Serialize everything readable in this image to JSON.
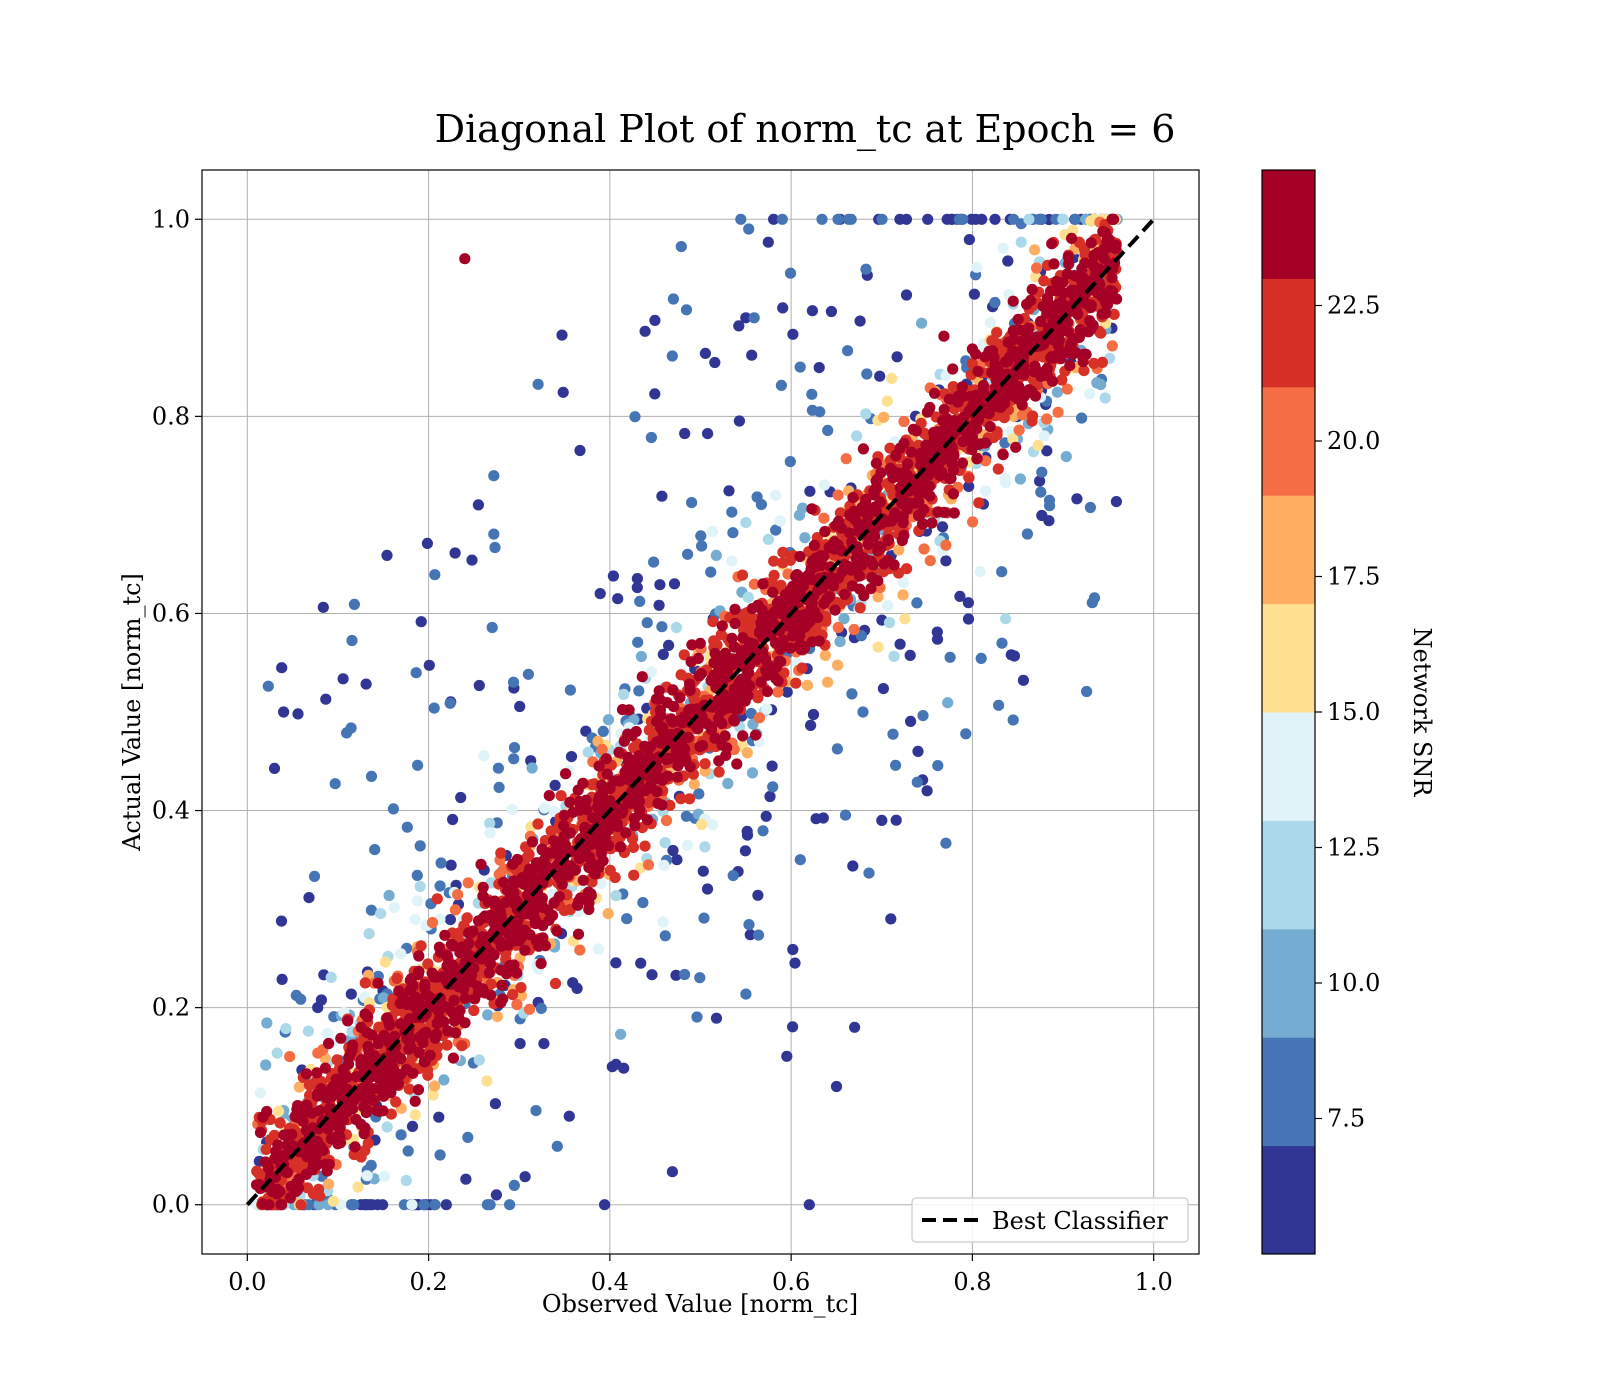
{
  "chart_data": {
    "type": "scatter",
    "title": "Diagonal Plot of norm_tc at Epoch = 6",
    "xlabel": "Observed Value [norm_tc]",
    "ylabel": "Actual Value [norm_tc]",
    "xlim": [
      -0.05,
      1.05
    ],
    "ylim": [
      -0.05,
      1.05
    ],
    "x_ticks": [
      "0.0",
      "0.2",
      "0.4",
      "0.6",
      "0.8",
      "1.0"
    ],
    "y_ticks": [
      "0.0",
      "0.2",
      "0.4",
      "0.6",
      "0.8",
      "1.0"
    ],
    "grid": true,
    "legend": {
      "position": "lower-right",
      "entries": [
        "Best Classifier"
      ]
    },
    "reference_line": {
      "name": "Best Classifier",
      "style": "dashed",
      "color": "#000000",
      "x": [
        0,
        1
      ],
      "y": [
        0,
        1
      ]
    },
    "colorbar": {
      "label": "Network SNR",
      "range": [
        5.0,
        25.0
      ],
      "ticks": [
        "7.5",
        "10.0",
        "12.5",
        "15.0",
        "17.5",
        "20.0",
        "22.5"
      ],
      "colors": [
        "#313695",
        "#4575b4",
        "#74add1",
        "#abd9e9",
        "#e0f3f8",
        "#fee090",
        "#fdae61",
        "#f46d43",
        "#d73027",
        "#a50026"
      ]
    },
    "points_note": "dense cloud of points along y = x, high SNR (red) tightly on the diagonal, low SNR (blue) widely scattered",
    "series": {
      "x": [
        0.05,
        0.12,
        0.25,
        0.33,
        0.45,
        0.52,
        0.61,
        0.74,
        0.85,
        0.92,
        0.1,
        0.2,
        0.3,
        0.4,
        0.5,
        0.6,
        0.7,
        0.8,
        0.9,
        0.04,
        0.7,
        0.74,
        0.75,
        0.71,
        0.67,
        0.65,
        0.62,
        0.24,
        0.55,
        0.61
      ],
      "y": [
        0.06,
        0.13,
        0.24,
        0.35,
        0.44,
        0.53,
        0.62,
        0.73,
        0.86,
        0.93,
        0.12,
        0.21,
        0.29,
        0.41,
        0.5,
        0.61,
        0.69,
        0.81,
        0.9,
        0.5,
        0.39,
        0.46,
        0.42,
        0.29,
        0.18,
        0.12,
        0.0,
        0.96,
        0.9,
        0.85
      ],
      "snr": [
        24,
        23,
        24,
        22,
        24,
        23,
        24,
        22,
        24,
        23,
        21,
        20,
        22,
        24,
        21,
        19,
        22,
        24,
        20,
        5,
        5,
        5,
        5,
        5,
        5,
        5,
        5,
        24,
        6,
        8
      ]
    }
  }
}
